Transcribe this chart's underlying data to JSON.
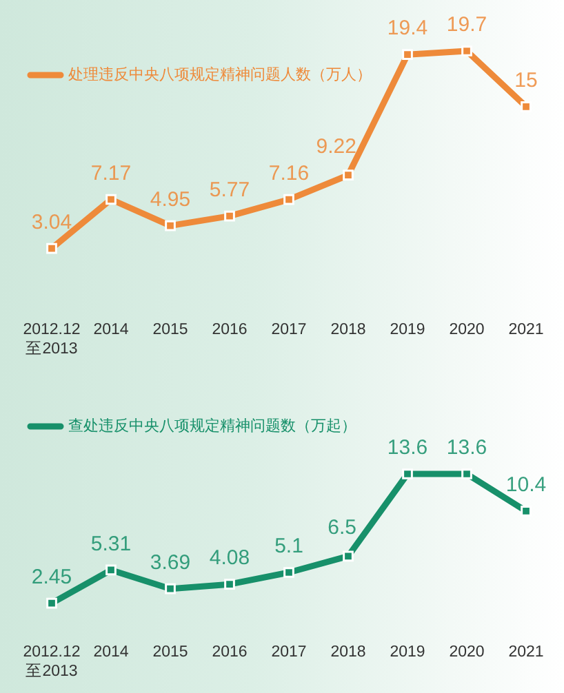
{
  "chart_data": [
    {
      "type": "line",
      "categories": [
        "2012.12\n至2013",
        "2014",
        "2015",
        "2016",
        "2017",
        "2018",
        "2019",
        "2020",
        "2021"
      ],
      "series": [
        {
          "name": "处理违反中央八项规定精神问题人数（万人）",
          "color": "#ee8a3a",
          "values": [
            3.04,
            7.17,
            4.95,
            5.77,
            7.16,
            9.22,
            19.4,
            19.7,
            15
          ]
        }
      ],
      "tick_labels": "x",
      "data_labels": true,
      "legend": "top left",
      "marker": "square",
      "line_style": "solid"
    },
    {
      "type": "line",
      "categories": [
        "2012.12\n至2013",
        "2014",
        "2015",
        "2016",
        "2017",
        "2018",
        "2019",
        "2020",
        "2021"
      ],
      "series": [
        {
          "name": "查处违反中央八项规定精神问题数（万起）",
          "color": "#17906a",
          "values": [
            2.45,
            5.31,
            3.69,
            4.08,
            5.1,
            6.5,
            13.6,
            13.6,
            10.4
          ]
        }
      ],
      "tick_labels": "x",
      "data_labels": true,
      "legend": "top left",
      "marker": "square",
      "line_style": "solid"
    }
  ]
}
